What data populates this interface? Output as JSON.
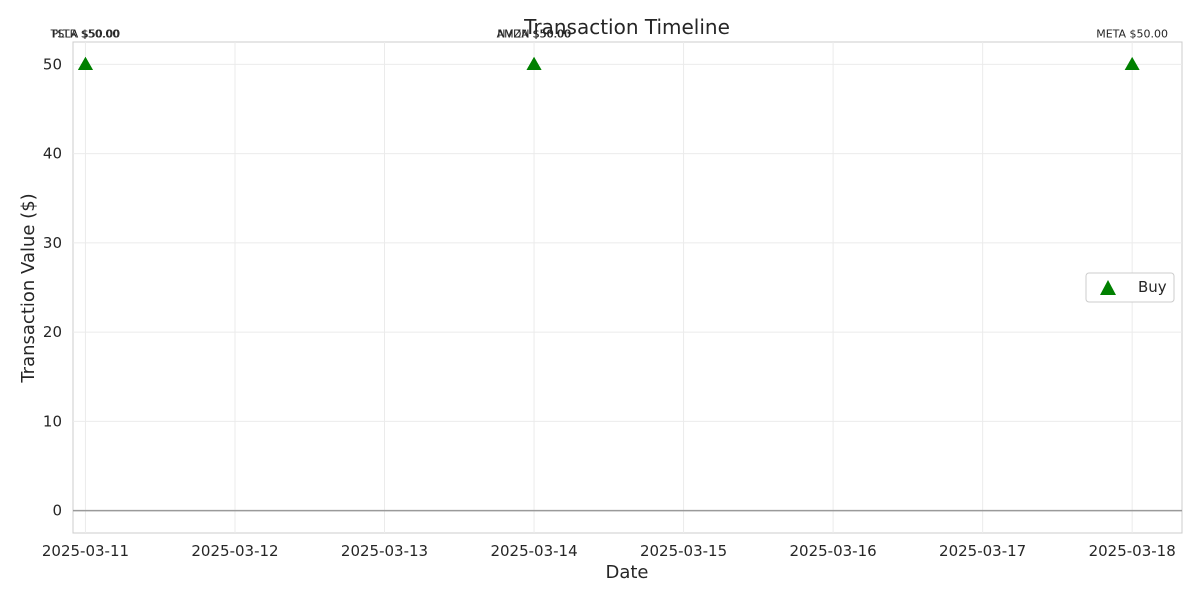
{
  "chart_data": {
    "type": "scatter",
    "title": "Transaction Timeline",
    "xlabel": "Date",
    "ylabel": "Transaction Value ($)",
    "x_ticks": [
      "2025-03-11",
      "2025-03-12",
      "2025-03-13",
      "2025-03-14",
      "2025-03-15",
      "2025-03-16",
      "2025-03-17",
      "2025-03-18"
    ],
    "xlim": [
      "2025-03-10T22:00",
      "2025-03-18T08:00"
    ],
    "y_ticks": [
      0,
      10,
      20,
      30,
      40,
      50
    ],
    "ylim": [
      -2.5,
      52.5
    ],
    "grid": true,
    "zero_line": true,
    "legend_position": "center-right",
    "series": [
      {
        "name": "Buy",
        "color": "#008000",
        "marker": "triangle-up",
        "points": [
          {
            "x": "2025-03-11",
            "y": 50,
            "label": "TSLA $50.00"
          },
          {
            "x": "2025-03-11",
            "y": 50,
            "label": "PLTR $50.00"
          },
          {
            "x": "2025-03-14",
            "y": 50,
            "label": "AMZN $50.00"
          },
          {
            "x": "2025-03-14",
            "y": 50,
            "label": "NVDA $50.00"
          },
          {
            "x": "2025-03-18",
            "y": 50,
            "label": "META $50.00"
          }
        ]
      }
    ]
  }
}
